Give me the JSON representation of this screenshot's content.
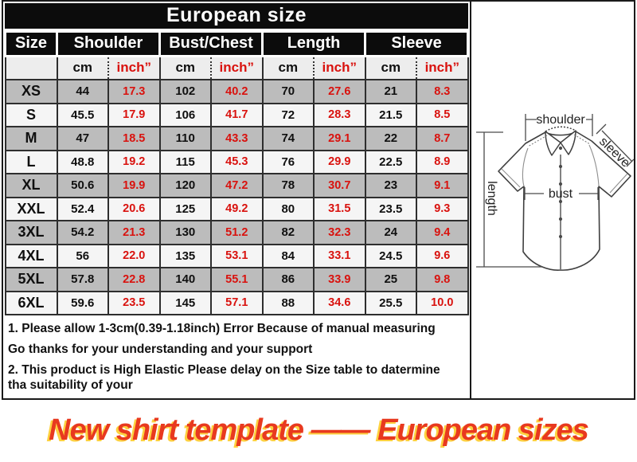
{
  "banner": {
    "title": "European size"
  },
  "table": {
    "size_header": "Size",
    "groups": [
      "Shoulder",
      "Bust/Chest",
      "Length",
      "Sleeve"
    ],
    "units": {
      "cm": "cm",
      "inch": "inch”"
    },
    "rows": [
      {
        "size": "XS",
        "values": [
          "44",
          "17.3",
          "102",
          "40.2",
          "70",
          "27.6",
          "21",
          "8.3"
        ]
      },
      {
        "size": "S",
        "values": [
          "45.5",
          "17.9",
          "106",
          "41.7",
          "72",
          "28.3",
          "21.5",
          "8.5"
        ]
      },
      {
        "size": "M",
        "values": [
          "47",
          "18.5",
          "110",
          "43.3",
          "74",
          "29.1",
          "22",
          "8.7"
        ]
      },
      {
        "size": "L",
        "values": [
          "48.8",
          "19.2",
          "115",
          "45.3",
          "76",
          "29.9",
          "22.5",
          "8.9"
        ]
      },
      {
        "size": "XL",
        "values": [
          "50.6",
          "19.9",
          "120",
          "47.2",
          "78",
          "30.7",
          "23",
          "9.1"
        ]
      },
      {
        "size": "XXL",
        "values": [
          "52.4",
          "20.6",
          "125",
          "49.2",
          "80",
          "31.5",
          "23.5",
          "9.3"
        ]
      },
      {
        "size": "3XL",
        "values": [
          "54.2",
          "21.3",
          "130",
          "51.2",
          "82",
          "32.3",
          "24",
          "9.4"
        ]
      },
      {
        "size": "4XL",
        "values": [
          "56",
          "22.0",
          "135",
          "53.1",
          "84",
          "33.1",
          "24.5",
          "9.6"
        ]
      },
      {
        "size": "5XL",
        "values": [
          "57.8",
          "22.8",
          "140",
          "55.1",
          "86",
          "33.9",
          "25",
          "9.8"
        ]
      },
      {
        "size": "6XL",
        "values": [
          "59.6",
          "23.5",
          "145",
          "57.1",
          "88",
          "34.6",
          "25.5",
          "10.0"
        ]
      }
    ]
  },
  "notes": [
    "1. Please allow 1-3cm(0.39-1.18inch) Error Because of manual measuring",
    "Go thanks for your understanding and your support",
    "2. This product is High Elastic  Please delay on the Size table to datermine tha suitability of your"
  ],
  "diagram": {
    "labels": {
      "shoulder": "shoulder",
      "sleeve": "sleeve",
      "length": "length",
      "bust": "bust"
    }
  },
  "footer": {
    "title": "New shirt template —— European sizes"
  },
  "colors": {
    "header_bg": "#0c0c0c",
    "row_gray": "#bcbcbc",
    "row_light": "#f5f5f5",
    "subheader_bg": "#ededed",
    "value_red": "#d9120e",
    "border": "#2e2e2e",
    "title_red": "#e8391f",
    "title_shadow": "#fdd140"
  }
}
